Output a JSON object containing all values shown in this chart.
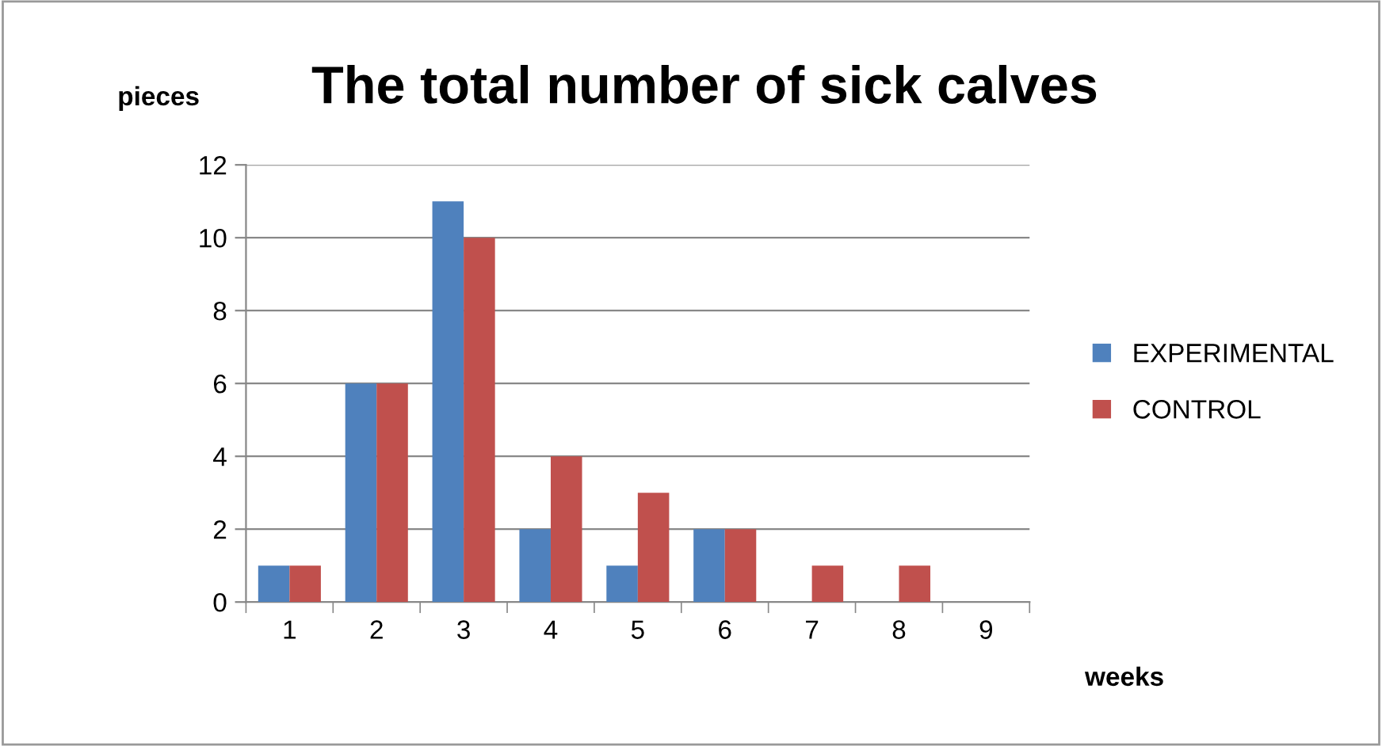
{
  "chart_data": {
    "type": "bar",
    "title": "The total number of sick calves",
    "xlabel": "weeks",
    "ylabel": "pieces",
    "categories": [
      "1",
      "2",
      "3",
      "4",
      "5",
      "6",
      "7",
      "8",
      "9"
    ],
    "series": [
      {
        "name": "EXPERIMENTAL",
        "color": "#4f81bd",
        "values": [
          1,
          6,
          11,
          2,
          1,
          2,
          0,
          0,
          0
        ]
      },
      {
        "name": "CONTROL",
        "color": "#c0504d",
        "values": [
          1,
          6,
          10,
          4,
          3,
          2,
          1,
          1,
          0
        ]
      }
    ],
    "ylim": [
      0,
      12
    ],
    "yticks": [
      0,
      2,
      4,
      6,
      8,
      10,
      12
    ],
    "grid": "y",
    "legend": "right"
  }
}
